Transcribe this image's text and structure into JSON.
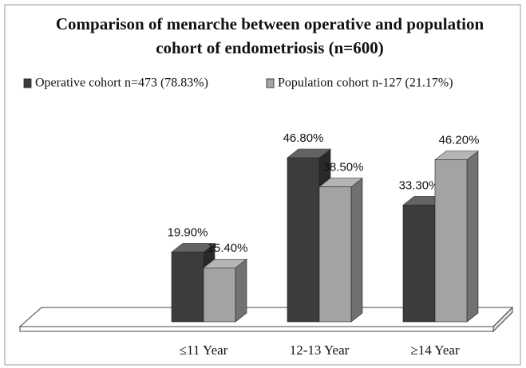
{
  "chart_data": {
    "type": "bar3d",
    "title": [
      "Comparison of menarche between operative and population",
      "cohort of endometriosis (n=600)"
    ],
    "categories": [
      "≤11 Year",
      "12-13 Year",
      "≥14 Year"
    ],
    "series": [
      {
        "name": "Operative cohort n=473 (78.83%)",
        "color": "#3c3c3c",
        "values": [
          19.9,
          46.8,
          33.3
        ],
        "value_labels": [
          "19.90%",
          "46.80%",
          "33.30%"
        ]
      },
      {
        "name": "Population cohort n-127 (21.17%)",
        "color": "#a3a3a3",
        "values": [
          15.4,
          38.5,
          46.2
        ],
        "value_labels": [
          "15.40%",
          "38.50%",
          "46.20%"
        ]
      }
    ],
    "ylim": [
      0,
      50
    ],
    "legend": "top"
  }
}
